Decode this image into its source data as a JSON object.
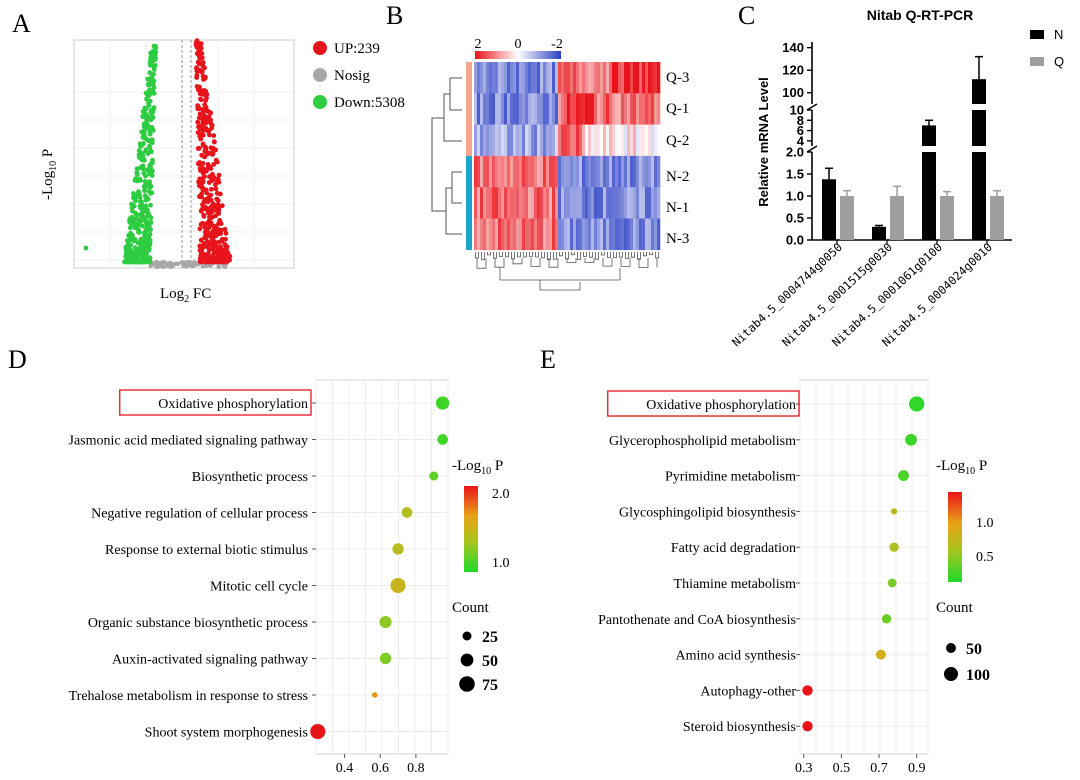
{
  "panels": {
    "A": {
      "letter": "A"
    },
    "B": {
      "letter": "B"
    },
    "C": {
      "letter": "C"
    },
    "D": {
      "letter": "D"
    },
    "E": {
      "letter": "E"
    }
  },
  "volcano": {
    "ylabel_main": "-Log",
    "ylabel_sub": "10",
    "ylabel_tail": " P",
    "xlabel_main": "Log",
    "xlabel_sub": "2",
    "xlabel_tail": " FC",
    "legend": [
      {
        "label": "UP:239",
        "color": "#e8141b"
      },
      {
        "label": "Nosig",
        "color": "#a8a8a8"
      },
      {
        "label": "Down:5308",
        "color": "#2ecc40"
      }
    ]
  },
  "heatmap": {
    "scale_ticks": [
      "2",
      "0",
      "-2"
    ],
    "row_labels": [
      "Q-3",
      "Q-1",
      "Q-2",
      "N-2",
      "N-1",
      "N-3"
    ],
    "group_colors": [
      "#f4a58a",
      "#1aa6c9"
    ]
  },
  "chart_data": [
    {
      "type": "bar",
      "title": "Nitab Q-RT-PCR",
      "ylabel": "Relative mRNA Level",
      "categories": [
        "Nitab4.5_0004744g0050",
        "Nitab4.5_0001515g0030",
        "Nitab4.5_0001061g0100",
        "Nitab4.5_0004024g0010"
      ],
      "series": [
        {
          "name": "N",
          "color": "#000000",
          "values": [
            1.38,
            0.3,
            7.0,
            112
          ],
          "errors": [
            0.25,
            0.03,
            1.0,
            20
          ]
        },
        {
          "name": "Q",
          "color": "#9e9e9e",
          "values": [
            1.0,
            1.0,
            1.0,
            1.0
          ],
          "errors": [
            0.12,
            0.22,
            0.1,
            0.12
          ]
        }
      ],
      "yticks_low": [
        "0.0",
        "0.5",
        "1.0",
        "1.5",
        "2.0"
      ],
      "yticks_mid": [
        "4",
        "6",
        "8",
        "10"
      ],
      "yticks_high": [
        "100",
        "120",
        "140"
      ],
      "legend_position": "top-right"
    },
    {
      "type": "scatter",
      "legend_title_main": "-Log",
      "legend_title_sub": "10",
      "legend_title_tail": " P",
      "color_ticks": [
        "2.0",
        "1.0"
      ],
      "count_title": "Count",
      "count_ticks": [
        "25",
        "50",
        "75"
      ],
      "xticks": [
        "0.4",
        "0.6",
        "0.8"
      ],
      "highlighted": "Oxidative phosphorylation",
      "terms": [
        {
          "name": "Oxidative phosphorylation",
          "x": 0.95,
          "count": 55,
          "neglogp": 0.9
        },
        {
          "name": "Jasmonic acid mediated signaling pathway",
          "x": 0.95,
          "count": 35,
          "neglogp": 0.9
        },
        {
          "name": "Biosynthetic process",
          "x": 0.9,
          "count": 25,
          "neglogp": 1.0
        },
        {
          "name": "Negative regulation of cellular process",
          "x": 0.75,
          "count": 35,
          "neglogp": 1.3
        },
        {
          "name": "Response to external biotic stimulus",
          "x": 0.7,
          "count": 40,
          "neglogp": 1.35
        },
        {
          "name": "Mitotic cell cycle",
          "x": 0.7,
          "count": 70,
          "neglogp": 1.45
        },
        {
          "name": "Organic substance biosynthetic process",
          "x": 0.63,
          "count": 45,
          "neglogp": 1.15
        },
        {
          "name": "Auxin-activated signaling pathway",
          "x": 0.63,
          "count": 40,
          "neglogp": 1.1
        },
        {
          "name": "Trehalose metabolism in response to stress",
          "x": 0.57,
          "count": 10,
          "neglogp": 1.7
        },
        {
          "name": "Shoot system morphogenesis",
          "x": 0.25,
          "count": 70,
          "neglogp": 2.1
        }
      ]
    },
    {
      "type": "scatter",
      "legend_title_main": "-Log",
      "legend_title_sub": "10",
      "legend_title_tail": " P",
      "color_ticks": [
        "1.0",
        "0.5"
      ],
      "count_title": "Count",
      "count_ticks": [
        "50",
        "100"
      ],
      "xticks": [
        "0.3",
        "0.5",
        "0.7",
        "0.9"
      ],
      "highlighted": "Oxidative phosphorylation",
      "terms": [
        {
          "name": "Oxidative phosphorylation",
          "x": 0.9,
          "count": 120,
          "neglogp": 0.05
        },
        {
          "name": "Glycerophospholipid metabolism",
          "x": 0.87,
          "count": 70,
          "neglogp": 0.1
        },
        {
          "name": "Pyrimidine metabolism",
          "x": 0.83,
          "count": 60,
          "neglogp": 0.15
        },
        {
          "name": "Glycosphingolipid biosynthesis",
          "x": 0.78,
          "count": 20,
          "neglogp": 0.6
        },
        {
          "name": "Fatty acid degradation",
          "x": 0.78,
          "count": 45,
          "neglogp": 0.5
        },
        {
          "name": "Thiamine metabolism",
          "x": 0.77,
          "count": 40,
          "neglogp": 0.3
        },
        {
          "name": "Pantothenate and CoA biosynthesis",
          "x": 0.74,
          "count": 45,
          "neglogp": 0.25
        },
        {
          "name": "Amino acid synthesis",
          "x": 0.71,
          "count": 50,
          "neglogp": 0.8
        },
        {
          "name": "Autophagy-other",
          "x": 0.32,
          "count": 55,
          "neglogp": 1.4
        },
        {
          "name": "Steroid biosynthesis",
          "x": 0.32,
          "count": 55,
          "neglogp": 1.4
        }
      ]
    }
  ]
}
